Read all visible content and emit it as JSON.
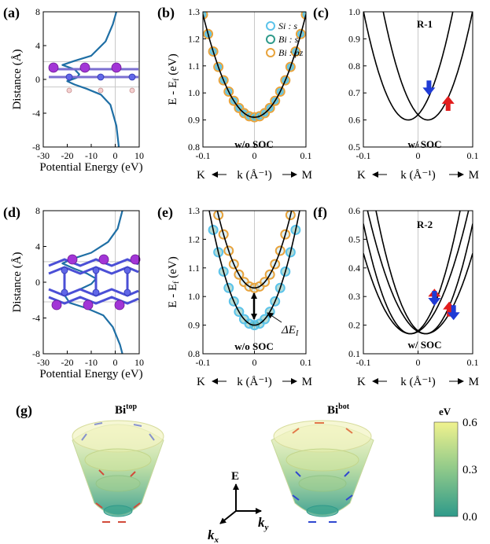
{
  "chart_data": [
    {
      "panel": "(a)",
      "type": "line",
      "xlabel": "Potential Energy (eV)",
      "ylabel": "Distance (Å)",
      "xlim": [
        -30,
        10
      ],
      "ylim": [
        -8,
        8
      ],
      "xticks": [
        "-30",
        "-20",
        "-10",
        "0",
        "10"
      ],
      "yticks": [
        "-8",
        "-4",
        "0",
        "4",
        "8"
      ],
      "x_grid_lines": [
        0
      ],
      "y_grid_lines": [
        -0.9,
        2.1
      ],
      "series": [
        {
          "name": "potential",
          "color": "#1f6fa5",
          "points": [
            [
              0.5,
              8
            ],
            [
              -1,
              6.5
            ],
            [
              -4,
              4.5
            ],
            [
              -10,
              2.8
            ],
            [
              -17,
              2.2
            ],
            [
              -22,
              1.7
            ],
            [
              -17,
              1.2
            ],
            [
              -15,
              0.6
            ],
            [
              -16,
              0.2
            ],
            [
              -20,
              -0.2
            ],
            [
              -17,
              -0.6
            ],
            [
              -12,
              -1.1
            ],
            [
              -6,
              -1.8
            ],
            [
              -2,
              -3
            ],
            [
              0.5,
              -5.5
            ],
            [
              1.5,
              -8
            ]
          ]
        }
      ]
    },
    {
      "panel": "(b)",
      "type": "scatter",
      "xlabel": "k (Å⁻¹)",
      "xlabel_left": "K",
      "xlabel_right": "M",
      "ylabel": "E - E",
      "ylabel_sub": "f",
      "ylabel_unit": "(eV)",
      "xlim": [
        -0.1,
        0.1
      ],
      "ylim": [
        0.8,
        1.3
      ],
      "xticks": [
        "-0.1",
        "0",
        "0.1"
      ],
      "yticks": [
        "0.8",
        "0.9",
        "1.0",
        "1.1",
        "1.2",
        "1.3"
      ],
      "annotation": "w/o SOC",
      "legend": [
        {
          "label": "Si : s",
          "color": "#5bc3ea"
        },
        {
          "label": "Bi : s",
          "color": "#2f9a8a"
        },
        {
          "label": "Bi : pz",
          "color": "#e8a33c"
        }
      ],
      "bands": [
        {
          "E0": 0.91,
          "k0": 0.0,
          "curvature": 38.0
        }
      ]
    },
    {
      "panel": "(c)",
      "type": "line",
      "xlabel": "k (Å⁻¹)",
      "xlabel_left": "K",
      "xlabel_right": "M",
      "xlim": [
        -0.1,
        0.1
      ],
      "ylim": [
        0.5,
        1.0
      ],
      "xticks": [
        "-0.1",
        "0",
        "0.1"
      ],
      "yticks": [
        "0.5",
        "0.6",
        "0.7",
        "0.8",
        "0.9",
        "1.0"
      ],
      "title": "R-1",
      "annotation": "w/ SOC",
      "bands": [
        {
          "E0": 0.6,
          "k0": -0.018,
          "curvature": 60.0
        },
        {
          "E0": 0.6,
          "k0": 0.018,
          "curvature": 60.0
        }
      ],
      "spin_arrows": [
        {
          "k": 0.02,
          "E": 0.72,
          "dir": "down",
          "color": "#1f3bd6"
        },
        {
          "k": 0.055,
          "E": 0.66,
          "dir": "up",
          "color": "#e21d1d"
        }
      ]
    },
    {
      "panel": "(d)",
      "type": "line",
      "xlabel": "Potential Energy (eV)",
      "ylabel": "Distance (Å)",
      "xlim": [
        -30,
        10
      ],
      "ylim": [
        -8,
        8
      ],
      "xticks": [
        "-30",
        "-20",
        "-10",
        "0",
        "10"
      ],
      "yticks": [
        "-8",
        "-4",
        "0",
        "4",
        "8"
      ],
      "x_grid_lines": [
        0
      ],
      "y_grid_lines": [
        -2.2,
        2.3
      ],
      "series": [
        {
          "name": "potential",
          "color": "#1f6fa5",
          "points": [
            [
              3,
              8
            ],
            [
              1,
              6
            ],
            [
              -3,
              4.5
            ],
            [
              -10,
              3.3
            ],
            [
              -18,
              2.6
            ],
            [
              -22,
              2.1
            ],
            [
              -17,
              1.5
            ],
            [
              -12,
              1
            ],
            [
              -8,
              0.4
            ],
            [
              -10,
              -0.2
            ],
            [
              -14,
              -0.7
            ],
            [
              -21,
              -1.5
            ],
            [
              -19,
              -2.3
            ],
            [
              -12,
              -2.9
            ],
            [
              -5,
              -3.7
            ],
            [
              -1,
              -5
            ],
            [
              2,
              -7
            ],
            [
              3,
              -8
            ]
          ]
        }
      ]
    },
    {
      "panel": "(e)",
      "type": "scatter",
      "xlabel": "k (Å⁻¹)",
      "xlabel_left": "K",
      "xlabel_right": "M",
      "ylabel": "E - E",
      "ylabel_sub": "f",
      "ylabel_unit": "(eV)",
      "xlim": [
        -0.1,
        0.1
      ],
      "ylim": [
        0.8,
        1.3
      ],
      "xticks": [
        "-0.1",
        "0",
        "0.1"
      ],
      "yticks": [
        "0.8",
        "0.9",
        "1.0",
        "1.1",
        "1.2",
        "1.3"
      ],
      "annotation": "w/o SOC",
      "delta_label": "ΔE",
      "delta_sub": "I",
      "bands": [
        {
          "E0": 1.03,
          "k0": 0.0,
          "curvature": 52.0,
          "proj": "pz"
        },
        {
          "E0": 0.9,
          "k0": 0.0,
          "curvature": 52.0,
          "proj": "s"
        }
      ]
    },
    {
      "panel": "(f)",
      "type": "line",
      "xlabel": "k (Å⁻¹)",
      "xlabel_left": "K",
      "xlabel_right": "M",
      "xlim": [
        -0.1,
        0.1
      ],
      "ylim": [
        0.1,
        0.6
      ],
      "xticks": [
        "-0.1",
        "0",
        "0.1"
      ],
      "yticks": [
        "0.1",
        "0.2",
        "0.3",
        "0.4",
        "0.5",
        "0.6"
      ],
      "title": "R-2",
      "annotation": "w/ SOC",
      "bands": [
        {
          "E0": 0.17,
          "k0": -0.014,
          "curvature": 52.0
        },
        {
          "E0": 0.17,
          "k0": 0.014,
          "curvature": 52.0
        },
        {
          "E0": 0.17,
          "k0": -0.014,
          "curvature": 38.0
        },
        {
          "E0": 0.17,
          "k0": 0.014,
          "curvature": 38.0
        }
      ],
      "spin_arrows": [
        {
          "k": 0.03,
          "E": 0.3,
          "dir": "up",
          "color": "#e21d1d"
        },
        {
          "k": 0.03,
          "E": 0.295,
          "dir": "down",
          "color": "#1f3bd6"
        },
        {
          "k": 0.057,
          "E": 0.255,
          "dir": "up",
          "color": "#e21d1d"
        },
        {
          "k": 0.065,
          "E": 0.245,
          "dir": "down",
          "color": "#1f3bd6"
        }
      ]
    },
    {
      "panel": "(g)",
      "type": "heatmap",
      "cone_labels": [
        {
          "main": "Bi",
          "sup": "top"
        },
        {
          "main": "Bi",
          "sup": "bot"
        }
      ],
      "axis_labels": {
        "E": "E",
        "kx": "k",
        "kx_sub": "x",
        "ky": "k",
        "ky_sub": "y"
      },
      "colorbar": {
        "unit": "eV",
        "ticks": [
          "0.6",
          "0.3",
          "0.0"
        ],
        "range": [
          0.0,
          0.6
        ]
      }
    }
  ],
  "panel_labels": [
    "(a)",
    "(b)",
    "(c)",
    "(d)",
    "(e)",
    "(f)",
    "(g)"
  ]
}
